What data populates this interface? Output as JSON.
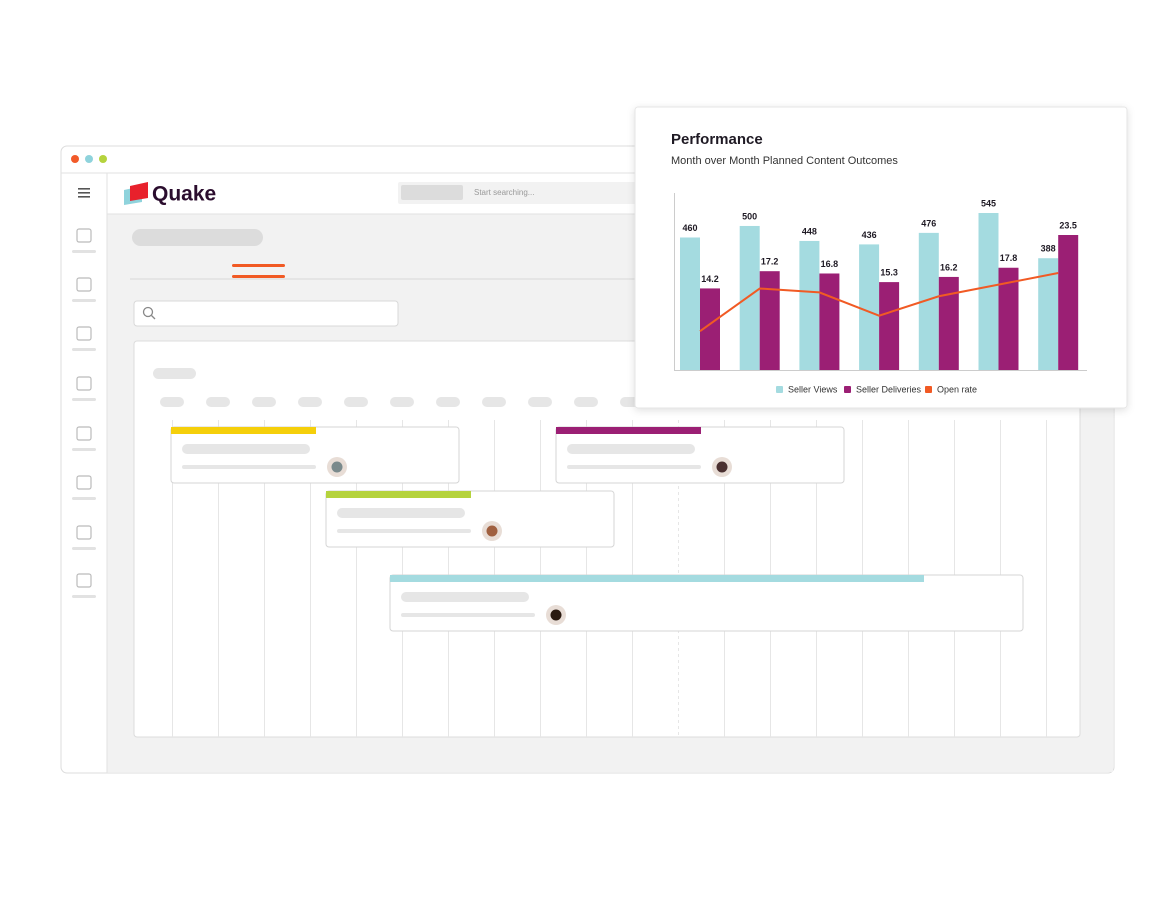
{
  "app": {
    "logo": "Quake",
    "search_placeholder": "Start searching..."
  },
  "chart_data": {
    "type": "bar",
    "title": "Performance",
    "subtitle": "Month over Month Planned Content Outcomes",
    "categories": [
      null,
      null,
      null,
      null,
      null,
      null,
      null
    ],
    "series": [
      {
        "name": "Seller Views",
        "color": "#a4dbe0",
        "values": [
          460,
          500,
          448,
          436,
          476,
          545,
          388
        ]
      },
      {
        "name": "Seller Deliveries",
        "color": "#9b1f74",
        "values": [
          14.2,
          17.2,
          16.8,
          15.3,
          16.2,
          17.8,
          23.5
        ]
      },
      {
        "name": "Open rate",
        "color": "#f15a24",
        "type": "line",
        "values": [
          10,
          21,
          20,
          14,
          19,
          22,
          25
        ]
      }
    ],
    "legend": "bottom"
  }
}
